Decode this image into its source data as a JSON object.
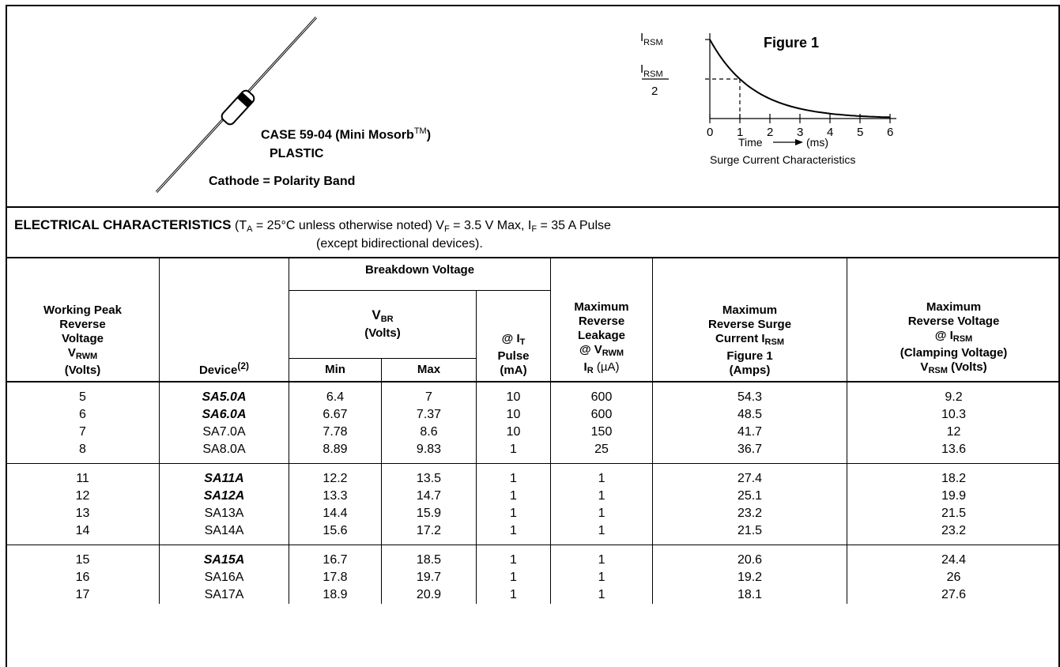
{
  "case": {
    "line1": "CASE 59-04 (Mini Mosorb",
    "tm": "TM",
    "close_paren": ")",
    "line2": "PLASTIC",
    "line3": "Cathode = Polarity Band"
  },
  "figure": {
    "title": "Figure 1",
    "y_label_main": "I",
    "y_label_sub": "RSM",
    "y_half_denominator": "2",
    "x_ticks": [
      "0",
      "1",
      "2",
      "3",
      "4",
      "5",
      "6"
    ],
    "x_label": "Time",
    "x_unit": "(ms)",
    "caption": "Surge Current  Characteristics"
  },
  "chart_data": {
    "type": "line",
    "title": "Figure 1",
    "xlabel": "Time (ms)",
    "ylabel": "IRSM",
    "x": [
      0,
      0.5,
      1,
      1.5,
      2,
      2.5,
      3,
      3.5,
      4,
      4.5,
      5,
      5.5,
      6
    ],
    "series": [
      {
        "values": [
          1,
          0.71,
          0.5,
          0.35,
          0.25,
          0.18,
          0.125,
          0.09,
          0.06,
          0.04,
          0.03,
          0.02,
          0.02
        ]
      }
    ],
    "xlim": [
      0,
      6
    ],
    "annotations": [
      "IRSM/2 at t = 1 ms"
    ]
  },
  "electrical": {
    "title": "ELECTRICAL CHARACTERISTICS",
    "conditions_line1_a": "(T",
    "conditions_line1_a_sub": "A",
    "conditions_line1_b": " = 25°C unless otherwise noted) V",
    "conditions_line1_b_sub": "F",
    "conditions_line1_c": " = 3.5 V Max, I",
    "conditions_line1_c_sub": "F",
    "conditions_line1_d": " = 35 A Pulse",
    "conditions_line2": "(except bidirectional devices)."
  },
  "headers": {
    "vrwm_1": "Working Peak",
    "vrwm_2": "Reverse",
    "vrwm_3": "Voltage",
    "vrwm_4": "V",
    "vrwm_4_sub": "RWM",
    "vrwm_5": "(Volts)",
    "device": "Device",
    "device_sup": "(2)",
    "breakdown": "Breakdown Voltage",
    "vbr": "V",
    "vbr_sub": "BR",
    "vbr_units": "(Volts)",
    "min": "Min",
    "max": "Max",
    "it_1": "@ I",
    "it_sub": "T",
    "it_2": "Pulse",
    "it_3": "(mA)",
    "ir_1": "Maximum",
    "ir_2": "Reverse",
    "ir_3": "Leakage",
    "ir_4": "@ V",
    "ir_4_sub": "RWM",
    "ir_5": "I",
    "ir_5_sub": "R",
    "ir_5_unit": " (µA)",
    "irsm_1": "Maximum",
    "irsm_2": "Reverse Surge",
    "irsm_3": "Current I",
    "irsm_3_sub": "RSM",
    "irsm_4": "Figure 1",
    "irsm_5": "(Amps)",
    "vrsm_1": "Maximum",
    "vrsm_2": "Reverse Voltage",
    "vrsm_3": "@ I",
    "vrsm_3_sub": "RSM",
    "vrsm_4": "(Clamping Voltage)",
    "vrsm_5": "V",
    "vrsm_5_sub": "RSM",
    "vrsm_5_unit": " (Volts)"
  },
  "rows": [
    {
      "vrwm": "5",
      "device": "SA5.0A",
      "bold": true,
      "min": "6.4",
      "max": "7",
      "it": "10",
      "ir": "600",
      "irsm": "54.3",
      "vrsm": "9.2"
    },
    {
      "vrwm": "6",
      "device": "SA6.0A",
      "bold": true,
      "min": "6.67",
      "max": "7.37",
      "it": "10",
      "ir": "600",
      "irsm": "48.5",
      "vrsm": "10.3"
    },
    {
      "vrwm": "7",
      "device": "SA7.0A",
      "bold": false,
      "min": "7.78",
      "max": "8.6",
      "it": "10",
      "ir": "150",
      "irsm": "41.7",
      "vrsm": "12"
    },
    {
      "vrwm": "8",
      "device": "SA8.0A",
      "bold": false,
      "min": "8.89",
      "max": "9.83",
      "it": "1",
      "ir": "25",
      "irsm": "36.7",
      "vrsm": "13.6"
    },
    {
      "vrwm": "11",
      "device": "SA11A",
      "bold": true,
      "min": "12.2",
      "max": "13.5",
      "it": "1",
      "ir": "1",
      "irsm": "27.4",
      "vrsm": "18.2"
    },
    {
      "vrwm": "12",
      "device": "SA12A",
      "bold": true,
      "min": "13.3",
      "max": "14.7",
      "it": "1",
      "ir": "1",
      "irsm": "25.1",
      "vrsm": "19.9"
    },
    {
      "vrwm": "13",
      "device": "SA13A",
      "bold": false,
      "min": "14.4",
      "max": "15.9",
      "it": "1",
      "ir": "1",
      "irsm": "23.2",
      "vrsm": "21.5"
    },
    {
      "vrwm": "14",
      "device": "SA14A",
      "bold": false,
      "min": "15.6",
      "max": "17.2",
      "it": "1",
      "ir": "1",
      "irsm": "21.5",
      "vrsm": "23.2"
    },
    {
      "vrwm": "15",
      "device": "SA15A",
      "bold": true,
      "min": "16.7",
      "max": "18.5",
      "it": "1",
      "ir": "1",
      "irsm": "20.6",
      "vrsm": "24.4"
    },
    {
      "vrwm": "16",
      "device": "SA16A",
      "bold": false,
      "min": "17.8",
      "max": "19.7",
      "it": "1",
      "ir": "1",
      "irsm": "19.2",
      "vrsm": "26"
    },
    {
      "vrwm": "17",
      "device": "SA17A",
      "bold": false,
      "min": "18.9",
      "max": "20.9",
      "it": "1",
      "ir": "1",
      "irsm": "18.1",
      "vrsm": "27.6"
    }
  ]
}
